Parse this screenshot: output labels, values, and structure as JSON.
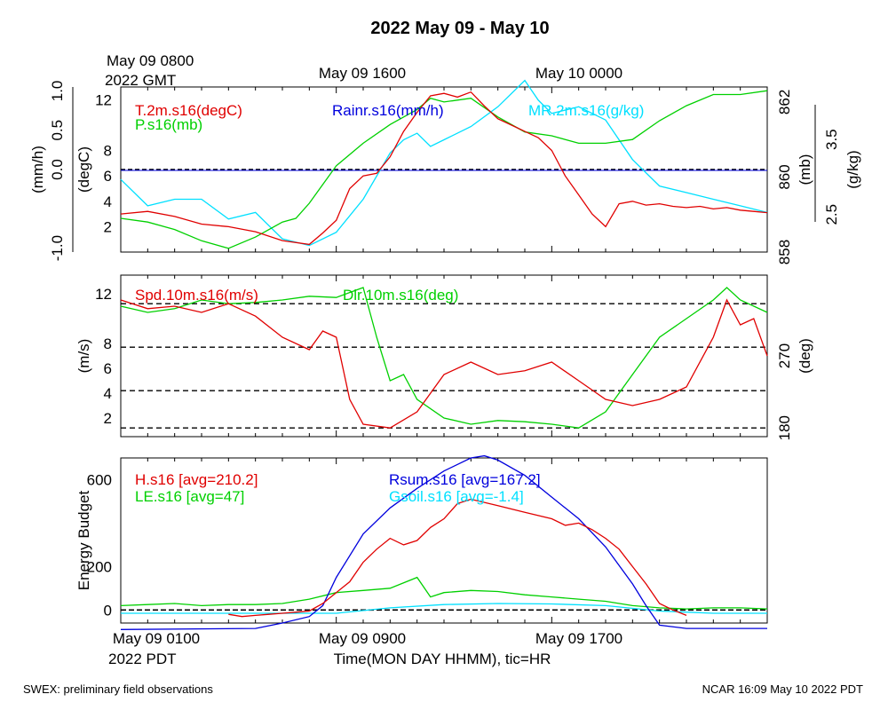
{
  "title": "2022 May 09 - May 10",
  "footer_left": "SWEX: preliminary field observations",
  "footer_right": "NCAR 16:09 May 10 2022 PDT",
  "x_axis": {
    "label": "Time(MON DAY HHMM), tic=HR",
    "top_left_label": [
      "May 09 0800",
      "2022 GMT"
    ],
    "top_ticks": [
      "May 09 1600",
      "May 10 0000"
    ],
    "bottom_ticks": [
      "May 09 0100",
      "May 09 0900",
      "May 09 1700"
    ],
    "bottom_left_label_line2": "2022 PDT",
    "range_hours": [
      0,
      24
    ]
  },
  "colors": {
    "red": "#e00000",
    "green": "#00d000",
    "blue": "#0000dd",
    "cyan": "#00e0ff",
    "black": "#000000"
  },
  "chart_data": [
    {
      "type": "line",
      "panel": "top",
      "left_axes": [
        {
          "label": "(mm/h)",
          "ticks": [
            "-1.0",
            "0.0",
            "0.5",
            "1.0"
          ]
        },
        {
          "label": "(degC)",
          "ticks": [
            "2",
            "4",
            "6",
            "8",
            "12"
          ],
          "ylim": [
            0,
            13
          ]
        }
      ],
      "right_axes": [
        {
          "label": "(mb)",
          "ticks": [
            "858",
            "860",
            "862"
          ],
          "ylim": [
            858,
            862.4
          ]
        },
        {
          "label": "(g/kg)",
          "ticks": [
            "2.5",
            "3.5"
          ]
        }
      ],
      "series": [
        {
          "name": "T.2m.s16(degC)",
          "color": "red",
          "axis": "degC",
          "x": [
            0,
            1,
            2,
            3,
            4,
            5,
            6,
            7,
            7.5,
            8,
            8.5,
            9,
            9.5,
            10,
            10.5,
            11,
            11.5,
            12,
            12.5,
            13,
            13.5,
            14,
            14.5,
            15,
            15.5,
            16,
            16.5,
            17,
            17.5,
            18,
            18.5,
            19,
            19.5,
            20,
            20.5,
            21,
            21.5,
            22,
            22.5,
            23,
            23.5,
            24
          ],
          "y": [
            3.0,
            3.2,
            2.8,
            2.2,
            2.0,
            1.6,
            0.9,
            0.6,
            1.5,
            2.5,
            5.0,
            6.0,
            6.2,
            7.5,
            9.5,
            11,
            12.3,
            12.5,
            12.2,
            12.6,
            11.5,
            10.5,
            10.0,
            9.5,
            9.0,
            8.0,
            6.0,
            4.5,
            3.0,
            2.0,
            3.8,
            4.0,
            3.7,
            3.8,
            3.6,
            3.5,
            3.6,
            3.4,
            3.5,
            3.3,
            3.2,
            3.1
          ]
        },
        {
          "name": "P.s16(mb)",
          "color": "green",
          "axis": "mb",
          "x": [
            0,
            1,
            2,
            3,
            4,
            5,
            6,
            6.5,
            7,
            7.5,
            8,
            9,
            10,
            11,
            11.5,
            12,
            13,
            14,
            15,
            16,
            17,
            18,
            19,
            20,
            21,
            22,
            23,
            24
          ],
          "y": [
            858.9,
            858.8,
            858.6,
            858.3,
            858.1,
            858.4,
            858.8,
            858.9,
            859.3,
            859.8,
            860.3,
            860.9,
            861.4,
            861.8,
            862.1,
            862.0,
            862.1,
            861.6,
            861.2,
            861.1,
            860.9,
            860.9,
            861.0,
            861.5,
            861.9,
            862.2,
            862.2,
            862.3
          ]
        },
        {
          "name": "Rainr.s16(mm/h)",
          "color": "blue",
          "axis": "mm/h",
          "x": [
            0,
            24
          ],
          "y": [
            0.0,
            0.0
          ]
        },
        {
          "name": "MR.2m.s16(g/kg)",
          "color": "cyan",
          "x": [
            0,
            1,
            2,
            3,
            4,
            5,
            6,
            7,
            8,
            9,
            10,
            10.5,
            11,
            11.5,
            12,
            13,
            14,
            15,
            15.5,
            16,
            17,
            18,
            19,
            20,
            21,
            22,
            23,
            24
          ],
          "y": [
            3.1,
            2.7,
            2.8,
            2.8,
            2.5,
            2.6,
            2.2,
            2.1,
            2.3,
            2.8,
            3.5,
            3.7,
            3.8,
            3.6,
            3.7,
            3.9,
            4.2,
            4.6,
            4.3,
            4.1,
            4.2,
            4.0,
            3.4,
            3.0,
            2.9,
            2.8,
            2.7,
            2.6
          ]
        }
      ]
    },
    {
      "type": "line",
      "panel": "middle",
      "left_axes": [
        {
          "label": "(m/s)",
          "ticks": [
            "2",
            "4",
            "6",
            "8",
            "12"
          ],
          "ylim": [
            0.5,
            13.5
          ]
        }
      ],
      "right_axes": [
        {
          "label": "(deg)",
          "ticks": [
            "180",
            "270"
          ]
        }
      ],
      "reference_lines_ms": [
        1.2,
        4.2,
        7.7,
        11.2
      ],
      "series": [
        {
          "name": "Spd.10m.s16(m/s)",
          "color": "red",
          "x": [
            0,
            1,
            2,
            3,
            4,
            5,
            6,
            7,
            7.5,
            8,
            8.5,
            9,
            10,
            11,
            12,
            13,
            14,
            15,
            16,
            17,
            18,
            19,
            20,
            21,
            22,
            22.5,
            23,
            23.5,
            24
          ],
          "y": [
            11.5,
            10.8,
            11.0,
            10.5,
            11.2,
            10.2,
            8.5,
            7.5,
            9.0,
            8.5,
            3.5,
            1.5,
            1.2,
            2.5,
            5.5,
            6.5,
            5.5,
            5.8,
            6.5,
            5.0,
            3.5,
            3.0,
            3.5,
            4.5,
            8.5,
            11.5,
            9.5,
            10.0,
            7.0
          ]
        },
        {
          "name": "Dlr.10m.s16(deg)",
          "color": "green",
          "x": [
            0,
            1,
            2,
            3,
            4,
            5,
            6,
            7,
            8,
            9,
            9.5,
            10,
            10.5,
            11,
            12,
            13,
            14,
            15,
            16,
            17,
            18,
            19,
            20,
            21,
            22,
            22.5,
            23,
            24
          ],
          "y": [
            11.0,
            10.5,
            10.8,
            11.5,
            11.2,
            11.3,
            11.5,
            11.8,
            11.7,
            12.5,
            8.5,
            5.0,
            5.5,
            3.5,
            2.0,
            1.5,
            1.8,
            1.7,
            1.5,
            1.2,
            2.5,
            5.5,
            8.5,
            10.0,
            11.5,
            12.5,
            11.5,
            10.5
          ]
        }
      ]
    },
    {
      "type": "line",
      "panel": "bottom",
      "ylabel": "Energy Budget",
      "left_axes": [
        {
          "label": "Energy Budget",
          "ticks": [
            "0",
            "200",
            "600"
          ],
          "ylim": [
            -60,
            700
          ]
        }
      ],
      "series": [
        {
          "name": "H.s16 [avg=210.2]",
          "color": "red",
          "x": [
            4,
            4.5,
            5,
            5.5,
            6,
            6.5,
            7,
            7.5,
            8,
            8.5,
            9,
            9.5,
            10,
            10.5,
            11,
            11.5,
            12,
            12.5,
            13,
            14,
            15,
            16,
            16.5,
            17,
            17.5,
            18,
            18.5,
            19,
            19.5,
            20,
            20.5,
            21
          ],
          "y": [
            -20,
            -30,
            -25,
            -20,
            -15,
            -10,
            -5,
            30,
            80,
            130,
            220,
            280,
            330,
            300,
            320,
            380,
            420,
            490,
            510,
            480,
            450,
            420,
            390,
            400,
            370,
            330,
            280,
            200,
            120,
            30,
            0,
            -25
          ]
        },
        {
          "name": "LE.s16 [avg=47]",
          "color": "green",
          "x": [
            0,
            1,
            2,
            3,
            4,
            5,
            6,
            7,
            8,
            9,
            10,
            11,
            11.5,
            12,
            13,
            14,
            15,
            16,
            17,
            18,
            19,
            20,
            21,
            22,
            23,
            24
          ],
          "y": [
            20,
            25,
            30,
            20,
            25,
            25,
            30,
            50,
            80,
            90,
            100,
            150,
            60,
            80,
            90,
            85,
            70,
            60,
            50,
            40,
            20,
            10,
            5,
            10,
            10,
            5
          ]
        },
        {
          "name": "Rsum.s16 [avg=167.2]",
          "color": "blue",
          "x": [
            0,
            5,
            6,
            7,
            7.5,
            8,
            9,
            10,
            11,
            12,
            13,
            13.5,
            14,
            15,
            16,
            17,
            18,
            19,
            19.5,
            20,
            21,
            22,
            23,
            24
          ],
          "y": [
            -90,
            -85,
            -60,
            -30,
            20,
            150,
            350,
            470,
            560,
            640,
            700,
            710,
            690,
            620,
            520,
            420,
            290,
            120,
            20,
            -70,
            -85,
            -85,
            -85,
            -85
          ]
        },
        {
          "name": "Gsoil.s16 [avg=-1.4]",
          "color": "cyan",
          "x": [
            0,
            4,
            8,
            10,
            12,
            14,
            16,
            18,
            20,
            22,
            24
          ],
          "y": [
            -15,
            -15,
            -15,
            10,
            25,
            30,
            28,
            20,
            -5,
            -15,
            -15
          ]
        }
      ],
      "reference_lines_wm2": [
        0
      ]
    }
  ]
}
